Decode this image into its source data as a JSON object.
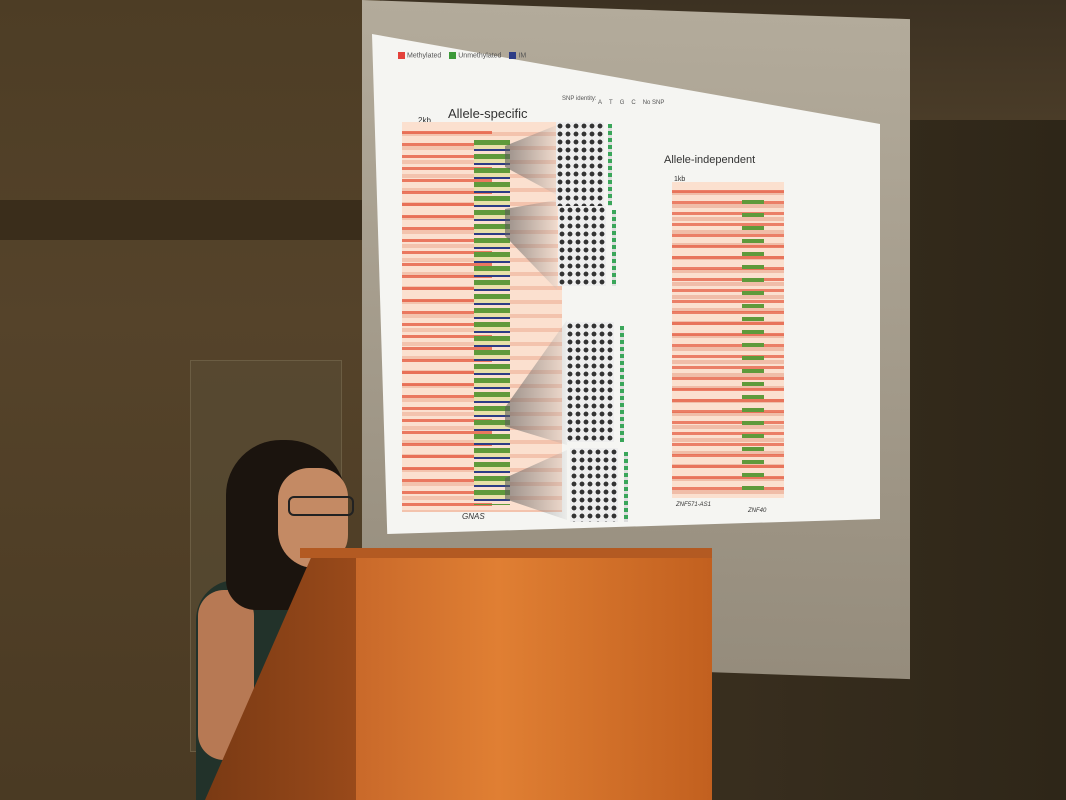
{
  "slide": {
    "legend": {
      "methylated": "Methylated",
      "unmethylated": "Unmethylated",
      "im": "IM",
      "colors": {
        "methylated": "#e4413a",
        "unmethylated": "#3d9a3a",
        "im": "#2d3c86"
      }
    },
    "snp_identity_label": "SNP identity:",
    "snp_keys": [
      "A",
      "T",
      "G",
      "C",
      "No SNP"
    ],
    "panel_left": {
      "title": "Allele-specific",
      "scale": "2kb",
      "gene": "GNAS"
    },
    "panel_right": {
      "title": "Allele-independent",
      "scale": "1kb",
      "gene_left": "ZNF571-AS1",
      "gene_right": "ZNF40"
    }
  },
  "scene": {
    "speaker": "presenter",
    "podium": "lectern"
  }
}
